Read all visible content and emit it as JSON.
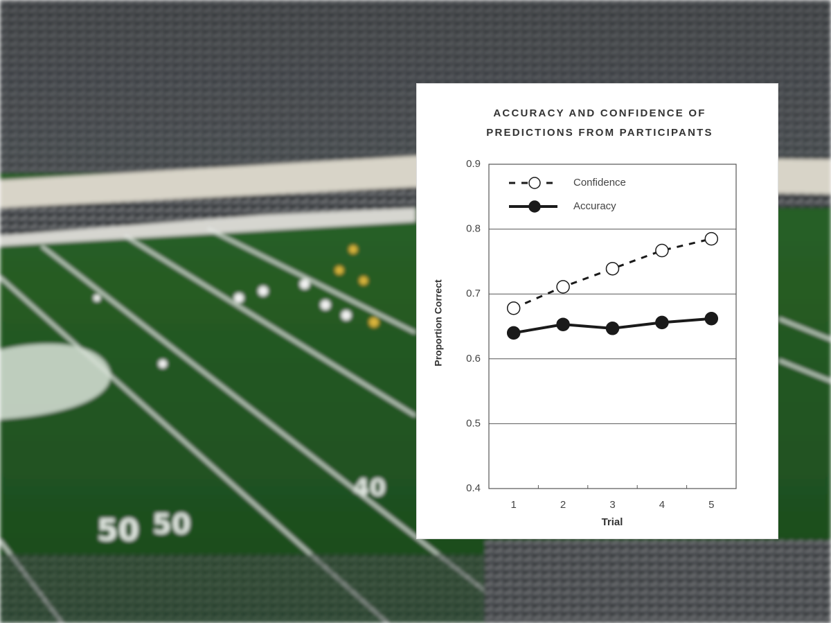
{
  "chart_data": {
    "type": "line",
    "title": "ACCURACY AND CONFIDENCE OF PREDICTIONS FROM PARTICIPANTS",
    "xlabel": "Trial",
    "ylabel": "Proportion Correct",
    "categories": [
      "1",
      "2",
      "3",
      "4",
      "5"
    ],
    "series": [
      {
        "name": "Confidence",
        "color": "#1a1a1a",
        "line_style": "dashed",
        "marker": "open",
        "values": [
          0.678,
          0.711,
          0.739,
          0.767,
          0.785
        ]
      },
      {
        "name": "Accuracy",
        "color": "#1a1a1a",
        "line_style": "solid",
        "marker": "filled",
        "values": [
          0.64,
          0.653,
          0.647,
          0.656,
          0.662
        ]
      }
    ],
    "ylim": [
      0.4,
      0.9
    ],
    "yticks": [
      0.4,
      0.5,
      0.6,
      0.7,
      0.8,
      0.9
    ],
    "grid": true,
    "legend": "top-left"
  }
}
